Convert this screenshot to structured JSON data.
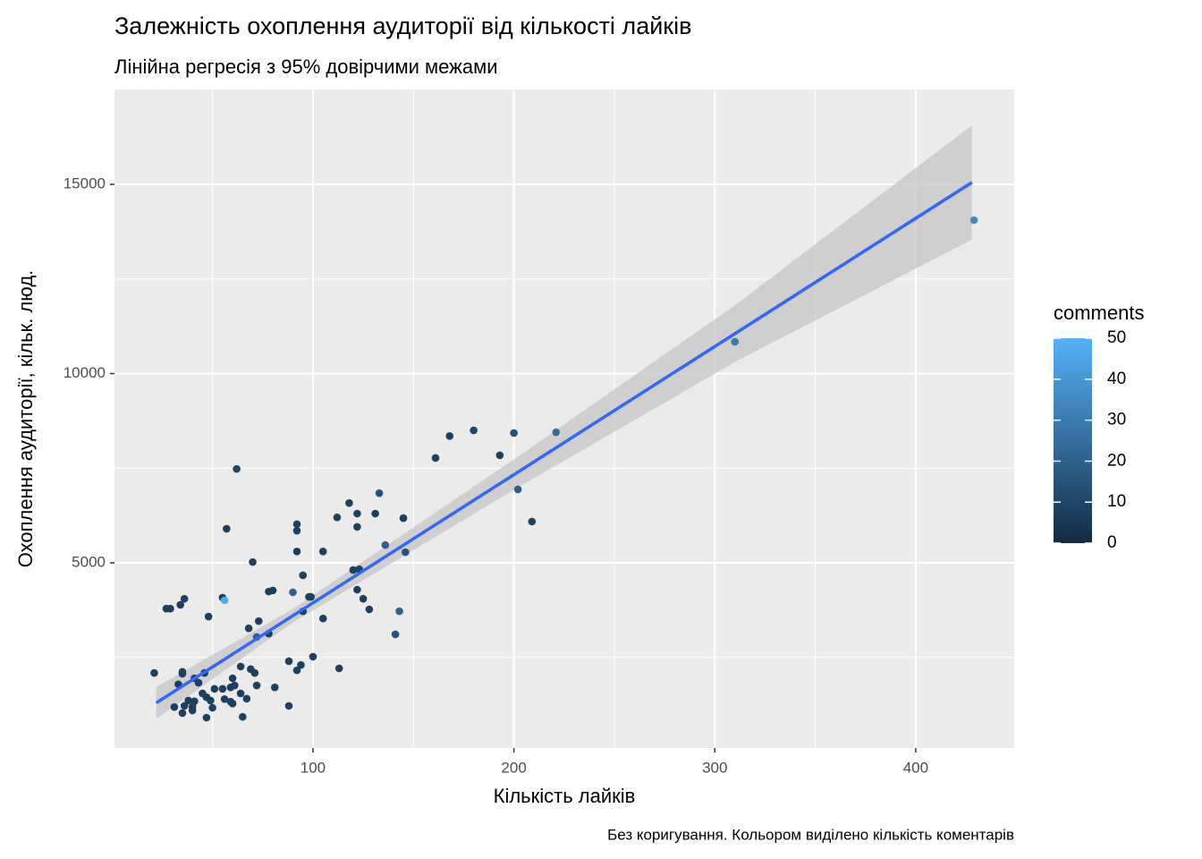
{
  "chart_data": {
    "type": "scatter",
    "title": "Залежність охоплення аудиторії від кількості лайків",
    "subtitle": "Лінійна регресія з 95% довірчими межами",
    "x_label": "Кількість лайків",
    "y_label": "Охоплення аудиторії, кільк. люд.",
    "caption": "Без коригування. Кольором виділено кількість коментарів",
    "xlim": [
      1.2,
      449
    ],
    "ylim": [
      106,
      17506
    ],
    "xticks": [
      100,
      200,
      300,
      400
    ],
    "yticks": [
      5000,
      10000,
      15000
    ],
    "x_minor_grid": [
      50,
      150,
      250,
      350
    ],
    "y_minor_grid": [
      2500,
      7500,
      12500
    ],
    "grid": true,
    "panel_color": "#ebebeb",
    "x": [
      429,
      310,
      221,
      200,
      180,
      168,
      193,
      161,
      202,
      209,
      62,
      133,
      118,
      112,
      131,
      122,
      92,
      92,
      57,
      145,
      122,
      136,
      146,
      105,
      92,
      70,
      120,
      123,
      95,
      80,
      78,
      90,
      122,
      98,
      99,
      55,
      56,
      36,
      125,
      27,
      29,
      34,
      128,
      143,
      95,
      105,
      48,
      73,
      68,
      78,
      141,
      72,
      100,
      88,
      94,
      92,
      113,
      64,
      21,
      35,
      35,
      46,
      69,
      71,
      60,
      41,
      43,
      72,
      81,
      33,
      51,
      55,
      59,
      61,
      64,
      67,
      56,
      45,
      47,
      49,
      38,
      41,
      31,
      36,
      40,
      50,
      60,
      59,
      35,
      40,
      47,
      65,
      88
    ],
    "values": [
      14054,
      10840,
      8450,
      8430,
      8500,
      8350,
      7840,
      7770,
      6940,
      6090,
      7480,
      6840,
      6580,
      6200,
      6300,
      6300,
      6020,
      5850,
      5900,
      6180,
      5950,
      5470,
      5280,
      5300,
      5300,
      5020,
      4810,
      4830,
      4670,
      4270,
      4240,
      4220,
      4290,
      4100,
      4100,
      4080,
      4010,
      4050,
      4050,
      3790,
      3790,
      3890,
      3770,
      3720,
      3720,
      3530,
      3580,
      3460,
      3270,
      3130,
      3110,
      3040,
      2520,
      2400,
      2300,
      2160,
      2210,
      2260,
      2090,
      2120,
      2070,
      2090,
      2190,
      2090,
      1950,
      1950,
      1830,
      1760,
      1710,
      1790,
      1670,
      1670,
      1710,
      1760,
      1550,
      1410,
      1400,
      1550,
      1450,
      1360,
      1360,
      1340,
      1190,
      1220,
      1190,
      1170,
      1280,
      1330,
      1030,
      1100,
      910,
      930,
      1220
    ],
    "comments": [
      35,
      30,
      25,
      15,
      10,
      8,
      8,
      8,
      18,
      8,
      10,
      15,
      8,
      8,
      8,
      8,
      8,
      8,
      8,
      8,
      8,
      20,
      15,
      8,
      8,
      8,
      8,
      8,
      8,
      8,
      8,
      20,
      8,
      8,
      8,
      8,
      48,
      8,
      8,
      8,
      8,
      8,
      8,
      20,
      8,
      8,
      8,
      8,
      8,
      8,
      15,
      20,
      8,
      8,
      8,
      8,
      8,
      8,
      8,
      8,
      8,
      8,
      8,
      8,
      8,
      8,
      8,
      8,
      8,
      8,
      8,
      8,
      8,
      8,
      8,
      8,
      8,
      8,
      8,
      8,
      8,
      8,
      8,
      8,
      8,
      8,
      8,
      8,
      8,
      8,
      8,
      8,
      8
    ],
    "color_scale": {
      "title": "comments",
      "low": "#132B43",
      "high": "#56B1F7",
      "lim": [
        0,
        50
      ],
      "ticks": [
        0,
        10,
        20,
        30,
        40,
        50
      ]
    },
    "fit": {
      "color": "#3366FF",
      "band_color": "#c8c8c8",
      "x": [
        22,
        90,
        200,
        310,
        428
      ],
      "values": [
        1300,
        3603,
        7329,
        11054,
        15051
      ],
      "lower": [
        880,
        3423,
        6929,
        10304,
        13541
      ],
      "upper": [
        1720,
        3783,
        7729,
        11804,
        16561
      ]
    }
  }
}
